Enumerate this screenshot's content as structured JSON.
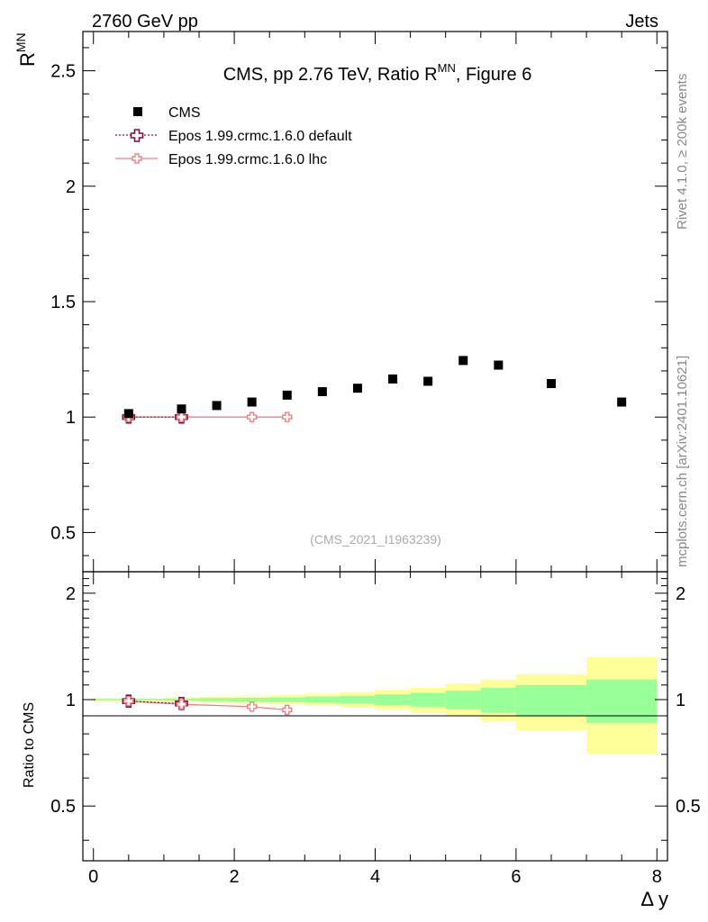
{
  "header": {
    "left": "2760 GeV pp",
    "right": "Jets"
  },
  "side_labels": {
    "rivet": "Rivet 4.1.0, ≥ 200k events",
    "mcplots": "mcplots.cern.ch [arXiv:2401.10621]"
  },
  "colors": {
    "data": "#000000",
    "default": "#7a0f3f",
    "lhc": "#f08080",
    "band_inner": "#99ff99",
    "band_outer": "#ffff99"
  },
  "chart_data": {
    "type": "scatter",
    "title_main": "CMS, pp 2.76 TeV, Ratio R",
    "title_sup": "MN",
    "title_tail": ", Figure 6",
    "ylabel_main": "R",
    "ylabel_sup": "MN",
    "xlabel": "Δ y",
    "ratio_ylabel": "Ratio to CMS",
    "watermark": "(CMS_2021_I1963239)",
    "xlim": [
      -0.15,
      8.15
    ],
    "ylim": [
      0.33,
      2.67
    ],
    "ratio_ylim": [
      0.35,
      2.3
    ],
    "x_ticks": [
      0,
      2,
      4,
      6,
      8
    ],
    "x_tick_labels": [
      "0",
      "2",
      "4",
      "6",
      "8"
    ],
    "y_ticks": [
      0.5,
      1,
      1.5,
      2,
      2.5
    ],
    "y_tick_labels": [
      "0.5",
      "1",
      "1.5",
      "2",
      "2.5"
    ],
    "ratio_ticks": [
      0.5,
      1,
      2
    ],
    "ratio_tick_labels": [
      "0.5",
      "1",
      "2"
    ],
    "legend": [
      {
        "name": "CMS"
      },
      {
        "name": "Epos 1.99.crmc.1.6.0 default"
      },
      {
        "name": "Epos 1.99.crmc.1.6.0 lhc"
      }
    ],
    "series": [
      {
        "name": "CMS",
        "x": [
          0.5,
          1.25,
          1.75,
          2.25,
          2.75,
          3.25,
          3.75,
          4.25,
          4.75,
          5.25,
          5.75,
          6.5,
          7.5
        ],
        "values": [
          1.015,
          1.035,
          1.05,
          1.065,
          1.095,
          1.11,
          1.125,
          1.165,
          1.155,
          1.245,
          1.225,
          1.145,
          1.065
        ]
      },
      {
        "name": "Epos 1.99.crmc.1.6.0 default",
        "x": [
          0.5,
          1.25
        ],
        "values": [
          1.0,
          1.0
        ]
      },
      {
        "name": "Epos 1.99.crmc.1.6.0 lhc",
        "x": [
          0.5,
          1.25,
          2.25,
          2.75
        ],
        "values": [
          1.0,
          1.0,
          1.0,
          1.0
        ]
      }
    ],
    "ratio_series": [
      {
        "name": "Epos 1.99.crmc.1.6.0 default",
        "x": [
          0.5,
          1.25
        ],
        "values": [
          0.99,
          0.975
        ]
      },
      {
        "name": "Epos 1.99.crmc.1.6.0 lhc",
        "x": [
          0.5,
          1.25,
          2.25,
          2.75
        ],
        "values": [
          0.99,
          0.97,
          0.955,
          0.935
        ]
      }
    ],
    "ratio_bands": {
      "edges": [
        0,
        1,
        1.5,
        2,
        2.5,
        3,
        3.5,
        4,
        4.5,
        5,
        5.5,
        6,
        7,
        8
      ],
      "inner": [
        [
          0.995,
          1.005
        ],
        [
          0.993,
          1.007
        ],
        [
          0.99,
          1.01
        ],
        [
          0.988,
          1.012
        ],
        [
          0.985,
          1.015
        ],
        [
          0.98,
          1.02
        ],
        [
          0.975,
          1.025
        ],
        [
          0.965,
          1.035
        ],
        [
          0.955,
          1.045
        ],
        [
          0.94,
          1.06
        ],
        [
          0.92,
          1.08
        ],
        [
          0.9,
          1.1
        ],
        [
          0.86,
          1.14
        ]
      ],
      "outer": [
        [
          0.99,
          1.01
        ],
        [
          0.985,
          1.015
        ],
        [
          0.98,
          1.02
        ],
        [
          0.975,
          1.025
        ],
        [
          0.97,
          1.03
        ],
        [
          0.96,
          1.04
        ],
        [
          0.95,
          1.05
        ],
        [
          0.935,
          1.065
        ],
        [
          0.92,
          1.08
        ],
        [
          0.9,
          1.11
        ],
        [
          0.87,
          1.14
        ],
        [
          0.82,
          1.18
        ],
        [
          0.7,
          1.32
        ]
      ]
    }
  }
}
